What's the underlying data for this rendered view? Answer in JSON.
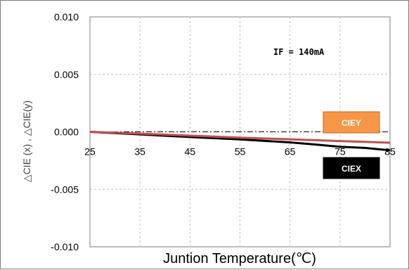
{
  "chart_data": {
    "type": "line",
    "title": "",
    "xlabel": "Juntion Temperature(℃)",
    "ylabel": "△CIE (x) , △CIE(y)",
    "xlim": [
      25,
      85
    ],
    "ylim": [
      -0.01,
      0.01
    ],
    "x_ticks": [
      "25",
      "35",
      "45",
      "55",
      "65",
      "75",
      "85"
    ],
    "y_ticks": [
      "0.010",
      "0.005",
      "0.000",
      "-0.005",
      "-0.010"
    ],
    "grid": true,
    "annotation": "IF = 140mA",
    "reference_line_y": 0,
    "series": [
      {
        "name": "CIEX",
        "color": "#000000",
        "x": [
          25,
          35,
          45,
          55,
          65,
          70,
          75,
          80,
          85
        ],
        "y": [
          0.0,
          -0.00022,
          -0.00045,
          -0.00066,
          -0.00092,
          -0.0011,
          -0.0013,
          -0.0014,
          -0.0016
        ]
      },
      {
        "name": "CIEY",
        "color": "#c0504d",
        "x": [
          25,
          35,
          45,
          55,
          65,
          75,
          85
        ],
        "y": [
          0.0,
          -0.00015,
          -0.00033,
          -0.0005,
          -0.00065,
          -0.0008,
          -0.00095
        ]
      }
    ],
    "legend": [
      {
        "label": "CIEY",
        "bg": "#f79646",
        "fg": "#ffffff",
        "border": "#bf6a1f"
      },
      {
        "label": "CIEX",
        "bg": "#000000",
        "fg": "#ffffff",
        "border": "#000000"
      }
    ]
  }
}
